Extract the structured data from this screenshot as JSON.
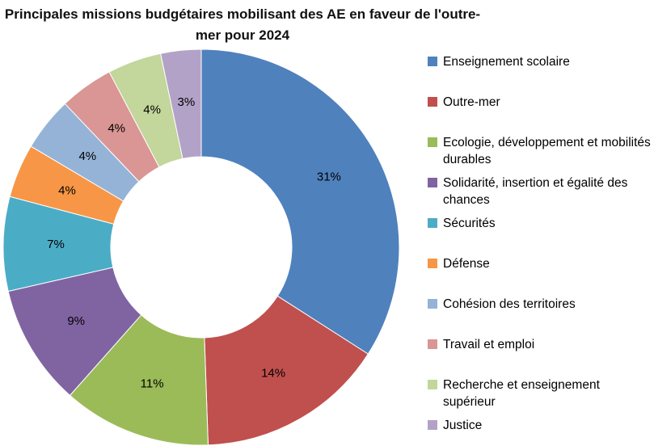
{
  "chart_data": {
    "type": "pie",
    "donut": true,
    "title": "Principales missions budgétaires mobilisant des AE en faveur de l'outre-mer pour 2024",
    "legend_position": "right",
    "start_angle_deg": -90,
    "direction": "clockwise",
    "categories": [
      "Enseignement scolaire",
      "Outre-mer",
      "Ecologie, développement et mobilités durables",
      "Solidarité, insertion et égalité des chances",
      "Sécurités",
      "Défense",
      "Cohésion des territoires",
      "Travail et emploi",
      "Recherche et enseignement supérieur",
      "Justice"
    ],
    "values": [
      31,
      14,
      11,
      9,
      7,
      4,
      4,
      4,
      4,
      3
    ],
    "labels": [
      "31%",
      "14%",
      "11%",
      "9%",
      "7%",
      "4%",
      "4%",
      "4%",
      "4%",
      "3%"
    ],
    "colors": [
      "#4F81BD",
      "#C0504D",
      "#9BBB59",
      "#8064A2",
      "#4BACC6",
      "#F79646",
      "#95B3D7",
      "#D99694",
      "#C3D69B",
      "#B3A2C7"
    ]
  }
}
